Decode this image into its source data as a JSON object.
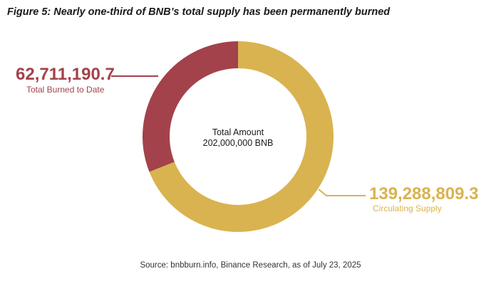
{
  "title": "Figure 5: Nearly one-third of BNB’s total supply has been permanently burned",
  "source": "Source: bnbburn.info, Binance Research, as of July 23, 2025",
  "colors": {
    "burned": "#a3424a",
    "circulating": "#d9b350"
  },
  "chart_data": {
    "type": "pie",
    "donut": true,
    "center_text": [
      "Total Amount",
      "202,000,000 BNB"
    ],
    "slices": [
      {
        "label": "Total Burned to Date",
        "value": 62711190.7,
        "value_text": "62,711,190.7",
        "color": "#a3424a"
      },
      {
        "label": "Circulating Supply",
        "value": 139288809.3,
        "value_text": "139,288,809.3",
        "color": "#d9b350"
      }
    ]
  }
}
